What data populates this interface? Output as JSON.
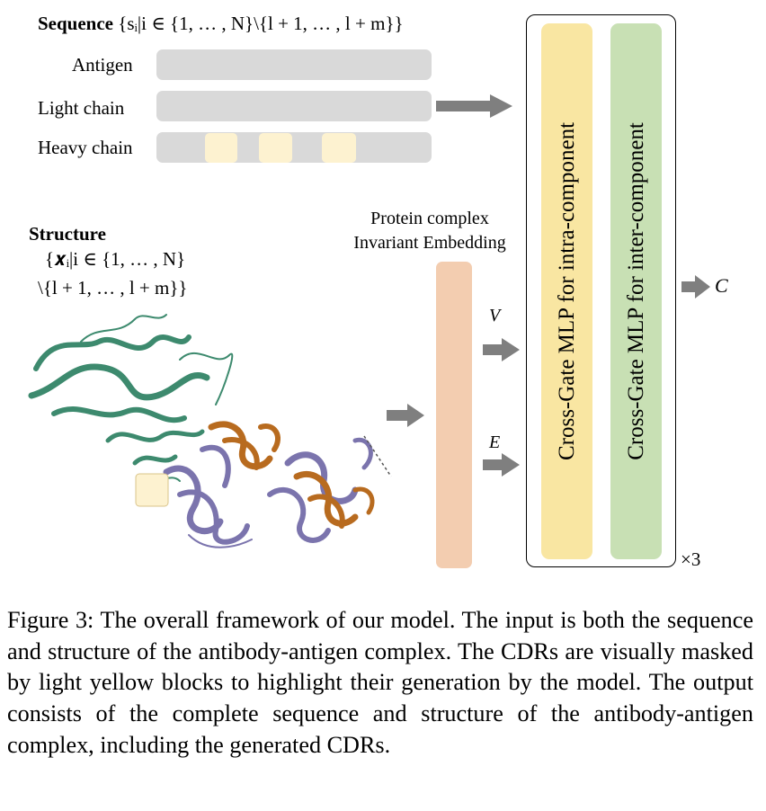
{
  "sequence": {
    "title": "Sequence",
    "set_notation": "{sᵢ|i ∈ {1, … , N}\\{l + 1, … , l + m}}",
    "rows": [
      "Antigen",
      "Light chain",
      "Heavy chain"
    ]
  },
  "structure": {
    "title": "Structure",
    "set_line1": "{𝒙ᵢ|i ∈ {1, … , N}",
    "set_line2": "\\{l + 1, … , l + m}}"
  },
  "embedding": {
    "line1": "Protein complex",
    "line2": "Invariant Embedding"
  },
  "arrows": {
    "v_label": "V",
    "e_label": "E",
    "output_label": "C"
  },
  "gates": {
    "intra_label": "Cross-Gate MLP for intra-component",
    "inter_label": "Cross-Gate MLP for inter-component",
    "repeat": "×3"
  },
  "colors": {
    "sequence_bar": "#d9d9d9",
    "cdr_mask": "#fdf2d0",
    "embedding": "#f3cdb0",
    "intra_gate": "#f9e6a2",
    "inter_gate": "#c8e0b4",
    "arrow": "#7f7f7f",
    "antigen_protein": "#3d8a6e",
    "light_chain_protein": "#7b74ad",
    "heavy_chain_protein": "#b86b1f"
  },
  "caption": "Figure 3: The overall framework of our model. The input is both the sequence and structure of the antibody-antigen complex. The CDRs are visually masked by light yellow blocks to highlight their generation by the model. The output consists of the complete sequence and structure of the antibody-antigen complex, including the generated CDRs."
}
